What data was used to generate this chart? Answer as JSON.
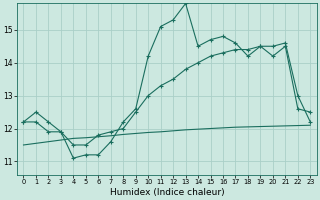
{
  "title": "",
  "xlabel": "Humidex (Indice chaleur)",
  "bg_color": "#cce8e0",
  "line_color": "#1a6e5e",
  "grid_color": "#aacfc8",
  "x_ticks": [
    0,
    1,
    2,
    3,
    4,
    5,
    6,
    7,
    8,
    9,
    10,
    11,
    12,
    13,
    14,
    15,
    16,
    17,
    18,
    19,
    20,
    21,
    22,
    23
  ],
  "y_ticks": [
    11,
    12,
    13,
    14,
    15
  ],
  "ylim": [
    10.6,
    15.8
  ],
  "xlim": [
    -0.5,
    23.5
  ],
  "series1": [
    12.2,
    12.5,
    12.2,
    11.9,
    11.1,
    11.2,
    11.2,
    11.6,
    12.2,
    12.6,
    14.2,
    15.1,
    15.3,
    15.8,
    14.5,
    14.7,
    14.8,
    14.6,
    14.2,
    14.5,
    14.2,
    14.5,
    12.6,
    12.5
  ],
  "series2": [
    12.2,
    12.2,
    11.9,
    11.9,
    11.5,
    11.5,
    11.8,
    11.9,
    12.0,
    12.5,
    13.0,
    13.3,
    13.5,
    13.8,
    14.0,
    14.2,
    14.3,
    14.4,
    14.4,
    14.5,
    14.5,
    14.6,
    13.0,
    12.2
  ],
  "series3": [
    11.5,
    11.55,
    11.6,
    11.65,
    11.7,
    11.72,
    11.75,
    11.78,
    11.82,
    11.85,
    11.88,
    11.9,
    11.93,
    11.96,
    11.98,
    12.0,
    12.02,
    12.04,
    12.05,
    12.06,
    12.07,
    12.08,
    12.09,
    12.1
  ],
  "marker": "+"
}
